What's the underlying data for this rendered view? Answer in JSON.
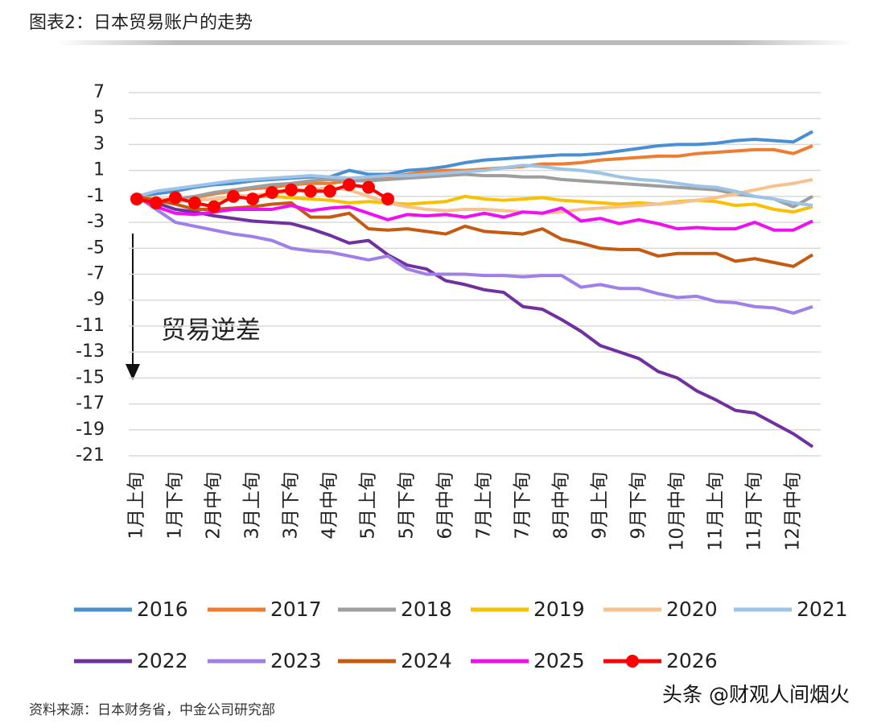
{
  "chart_data": {
    "type": "line",
    "title": "图表2：日本贸易账户的走势",
    "annotation": "贸易逆差",
    "source": "资料来源：日本财务省，中金公司研究部",
    "watermark": "头条 @财观人间烟火",
    "categories": [
      "1月上旬",
      null,
      "1月下旬",
      null,
      "2月中旬",
      null,
      "3月上旬",
      null,
      "3月下旬",
      null,
      "4月中旬",
      null,
      "5月上旬",
      null,
      "5月下旬",
      null,
      "6月中旬",
      null,
      "7月上旬",
      null,
      "7月下旬",
      null,
      "8月中旬",
      null,
      "9月上旬",
      null,
      "9月下旬",
      null,
      "10月中旬",
      null,
      "11月上旬",
      null,
      "11月下旬",
      null,
      "12月中旬",
      null
    ],
    "ylim": [
      -21,
      7
    ],
    "yticks": [
      7,
      5,
      3,
      1,
      -1,
      -3,
      -5,
      -7,
      -9,
      -11,
      -13,
      -15,
      -17,
      -19,
      -21
    ],
    "grid": true,
    "legend": "bottom",
    "series": [
      {
        "name": "2016",
        "color": "#4a8fd1",
        "values": [
          -1,
          -0.8,
          -0.6,
          -0.3,
          -0.1,
          0,
          0.2,
          0.3,
          0.4,
          0.5,
          0.5,
          1,
          0.7,
          0.7,
          1,
          1.1,
          1.3,
          1.6,
          1.8,
          1.9,
          2,
          2.1,
          2.2,
          2.2,
          2.3,
          2.5,
          2.7,
          2.9,
          3,
          3,
          3.1,
          3.3,
          3.4,
          3.3,
          3.2,
          4
        ]
      },
      {
        "name": "2017",
        "color": "#ee7d31",
        "values": [
          -1,
          -1.2,
          -1.3,
          -1.1,
          -0.8,
          -0.6,
          -0.4,
          -0.3,
          -0.1,
          0,
          0,
          0.2,
          0.4,
          0.5,
          0.7,
          0.9,
          1,
          1,
          1.1,
          1.2,
          1.3,
          1.5,
          1.5,
          1.6,
          1.8,
          1.9,
          2,
          2.1,
          2.1,
          2.3,
          2.4,
          2.5,
          2.6,
          2.6,
          2.3,
          2.9
        ]
      },
      {
        "name": "2018",
        "color": "#9e9e9e",
        "values": [
          -1,
          -1.3,
          -1.2,
          -1,
          -0.7,
          -0.5,
          -0.3,
          -0.1,
          0,
          0.2,
          0.3,
          0.2,
          0.2,
          0.3,
          0.4,
          0.5,
          0.6,
          0.7,
          0.6,
          0.6,
          0.5,
          0.5,
          0.3,
          0.2,
          0.1,
          0,
          -0.1,
          -0.2,
          -0.3,
          -0.4,
          -0.5,
          -0.8,
          -1,
          -1.2,
          -1.8,
          -1
        ]
      },
      {
        "name": "2019",
        "color": "#f9c000",
        "values": [
          -1,
          -1.2,
          -1.3,
          -1.3,
          -1.2,
          -1.1,
          -1,
          -1,
          -1.1,
          -1.2,
          -1.3,
          -1.5,
          -1.4,
          -1.5,
          -1.6,
          -1.5,
          -1.4,
          -1,
          -1.2,
          -1.3,
          -1.2,
          -1.1,
          -1.3,
          -1.4,
          -1.5,
          -1.6,
          -1.5,
          -1.6,
          -1.4,
          -1.3,
          -1.4,
          -1.7,
          -1.6,
          -2,
          -2.2,
          -1.8
        ]
      },
      {
        "name": "2020",
        "color": "#f6c28f",
        "values": [
          -1,
          -1.2,
          -1.4,
          -1.3,
          -1.2,
          -1,
          -0.9,
          -0.8,
          -0.6,
          -0.5,
          -0.3,
          -0.5,
          -1,
          -1.5,
          -1.8,
          -2,
          -2.1,
          -2,
          -2,
          -2.1,
          -2.2,
          -2.3,
          -2.2,
          -2,
          -1.9,
          -1.8,
          -1.7,
          -1.6,
          -1.5,
          -1.3,
          -1.1,
          -0.8,
          -0.5,
          -0.2,
          0,
          0.3
        ]
      },
      {
        "name": "2021",
        "color": "#9dc3e6",
        "values": [
          -1,
          -0.6,
          -0.4,
          -0.2,
          0,
          0.2,
          0.3,
          0.4,
          0.5,
          0.6,
          0.5,
          0.4,
          0.5,
          0.6,
          0.6,
          0.7,
          0.8,
          0.9,
          1,
          1.2,
          1.4,
          1.3,
          1.1,
          1,
          0.8,
          0.5,
          0.3,
          0.2,
          0,
          -0.2,
          -0.3,
          -0.6,
          -1,
          -1.2,
          -1.5,
          -1.7
        ]
      },
      {
        "name": "2022",
        "color": "#7030a0",
        "values": [
          -1,
          -1.5,
          -2,
          -2.2,
          -2.5,
          -2.7,
          -2.9,
          -3,
          -3.1,
          -3.5,
          -4,
          -4.6,
          -4.4,
          -5.5,
          -6.3,
          -6.6,
          -7.5,
          -7.8,
          -8.2,
          -8.4,
          -9.5,
          -9.7,
          -10.5,
          -11.4,
          -12.5,
          -13,
          -13.5,
          -14.5,
          -15,
          -16,
          -16.7,
          -17.5,
          -17.7,
          -18.5,
          -19.3,
          -20.3
        ]
      },
      {
        "name": "2023",
        "color": "#9f7fe8",
        "values": [
          -1,
          -2,
          -3,
          -3.3,
          -3.6,
          -3.9,
          -4.1,
          -4.4,
          -5,
          -5.2,
          -5.3,
          -5.6,
          -5.9,
          -5.6,
          -6.6,
          -7,
          -7,
          -7,
          -7.1,
          -7.1,
          -7.2,
          -7.1,
          -7.1,
          -8,
          -7.8,
          -8.1,
          -8.1,
          -8.5,
          -8.8,
          -8.7,
          -9.1,
          -9.2,
          -9.5,
          -9.6,
          -10,
          -9.5
        ]
      },
      {
        "name": "2024",
        "color": "#c55a11",
        "values": [
          -1,
          -1.3,
          -1.6,
          -2,
          -2,
          -1.9,
          -1.8,
          -1.6,
          -1.5,
          -2.6,
          -2.6,
          -2.3,
          -3.5,
          -3.6,
          -3.5,
          -3.7,
          -3.9,
          -3.3,
          -3.7,
          -3.8,
          -3.9,
          -3.5,
          -4.3,
          -4.6,
          -5,
          -5.1,
          -5.1,
          -5.6,
          -5.4,
          -5.4,
          -5.4,
          -6,
          -5.8,
          -6.1,
          -6.4,
          -5.5
        ]
      },
      {
        "name": "2025",
        "color": "#ee10ee",
        "values": [
          -1,
          -1.8,
          -2.3,
          -2.4,
          -2.2,
          -2,
          -2,
          -2,
          -1.7,
          -2.1,
          -1.9,
          -1.8,
          -2.3,
          -2.8,
          -2.4,
          -2.5,
          -2.4,
          -2.6,
          -2.3,
          -2.6,
          -2.2,
          -2.3,
          -1.9,
          -2.9,
          -2.7,
          -3.1,
          -2.8,
          -3.1,
          -3.5,
          -3.4,
          -3.5,
          -3.5,
          -3,
          -3.6,
          -3.6,
          -2.9
        ]
      },
      {
        "name": "2026",
        "color": "#ff0000",
        "marker": true,
        "values": [
          -1.2,
          -1.5,
          -1.1,
          -1.5,
          -1.8,
          -1,
          -1.2,
          -0.7,
          -0.5,
          -0.6,
          -0.6,
          -0.1,
          -0.3,
          -1.2,
          null,
          null,
          null,
          null,
          null,
          null,
          null,
          null,
          null,
          null,
          null,
          null,
          null,
          null,
          null,
          null,
          null,
          null,
          null,
          null,
          null,
          null
        ]
      }
    ]
  }
}
